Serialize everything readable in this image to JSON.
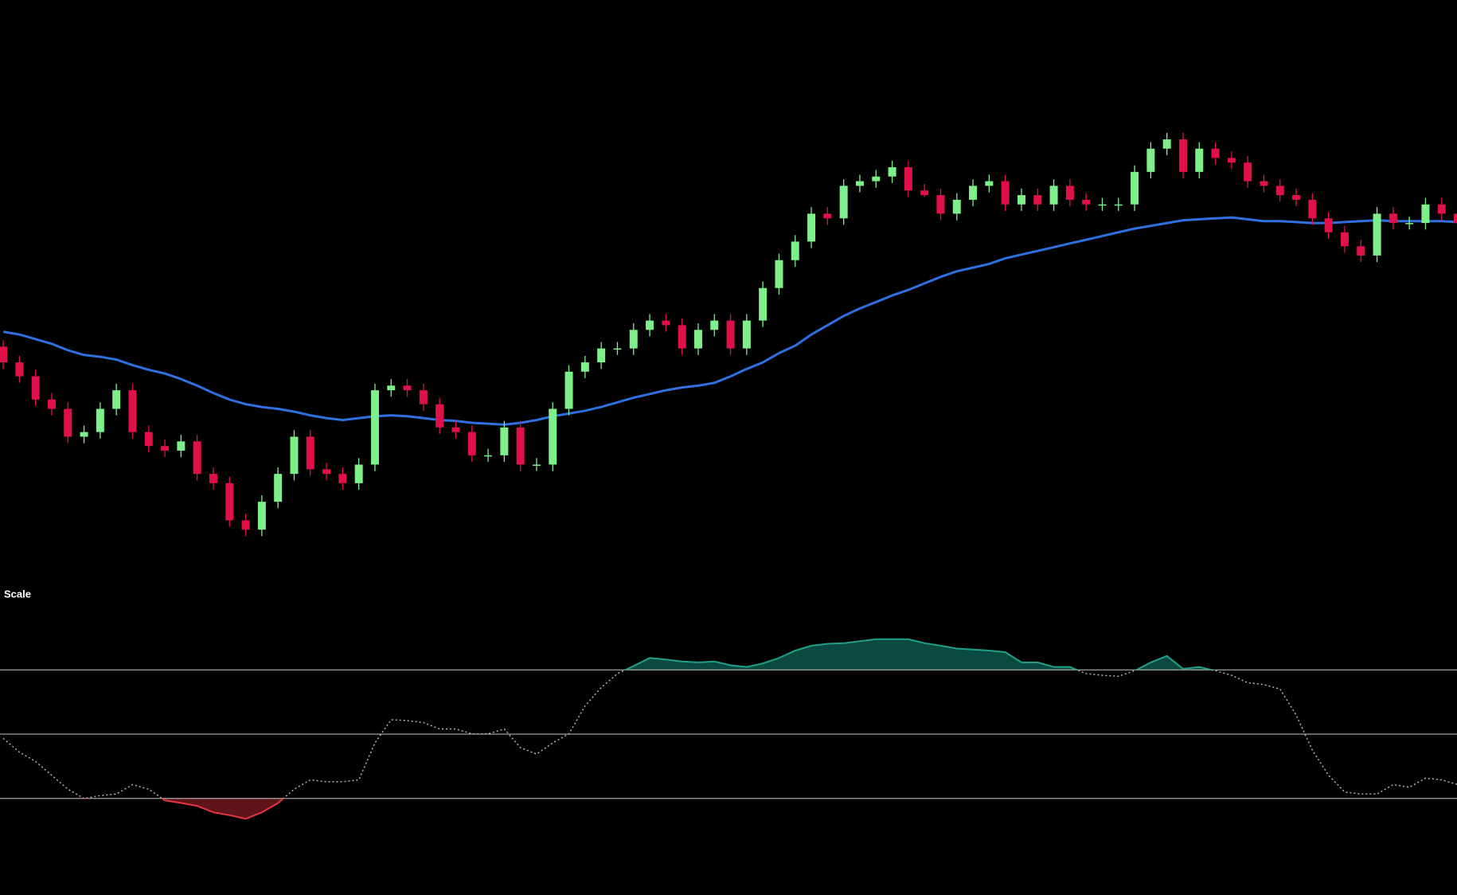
{
  "chart_data": [
    {
      "type": "candlestick",
      "up_color": "#7ef08a",
      "down_color": "#e0104a",
      "ylim": [
        340,
        963
      ],
      "open": [
        590,
        573,
        558,
        533,
        523,
        493,
        498,
        523,
        543,
        498,
        483,
        478,
        488,
        453,
        443,
        403,
        393,
        423,
        453,
        493,
        458,
        453,
        443,
        463,
        543,
        548,
        543,
        528,
        503,
        498,
        473,
        473,
        503,
        463,
        463,
        523,
        563,
        573,
        588,
        588,
        608,
        618,
        613,
        588,
        608,
        618,
        588,
        618,
        653,
        683,
        703,
        733,
        728,
        763,
        768,
        773,
        783,
        758,
        753,
        733,
        748,
        763,
        768,
        743,
        753,
        743,
        763,
        748,
        743,
        743,
        743,
        778,
        803,
        813,
        778,
        803,
        793,
        788,
        768,
        763,
        753,
        748,
        728,
        713,
        698,
        688,
        733,
        723,
        723,
        743,
        733
      ],
      "high": [
        597,
        580,
        565,
        540,
        530,
        505,
        530,
        550,
        550,
        505,
        490,
        495,
        495,
        460,
        450,
        410,
        430,
        460,
        500,
        500,
        465,
        460,
        470,
        550,
        555,
        555,
        550,
        535,
        510,
        505,
        480,
        510,
        510,
        470,
        530,
        570,
        580,
        595,
        595,
        615,
        625,
        625,
        620,
        615,
        625,
        625,
        625,
        660,
        690,
        710,
        740,
        740,
        770,
        775,
        780,
        790,
        790,
        765,
        760,
        755,
        770,
        775,
        775,
        760,
        760,
        770,
        770,
        755,
        750,
        750,
        785,
        810,
        820,
        820,
        810,
        810,
        800,
        795,
        775,
        770,
        760,
        755,
        735,
        720,
        705,
        740,
        740,
        730,
        750,
        750,
        740
      ],
      "low": [
        566,
        551,
        526,
        516,
        486,
        486,
        491,
        516,
        491,
        476,
        471,
        471,
        446,
        436,
        396,
        386,
        386,
        416,
        446,
        451,
        446,
        436,
        436,
        456,
        536,
        536,
        521,
        496,
        491,
        466,
        466,
        466,
        456,
        456,
        456,
        516,
        556,
        566,
        581,
        581,
        601,
        606,
        581,
        581,
        601,
        581,
        581,
        611,
        646,
        676,
        696,
        721,
        721,
        756,
        761,
        766,
        751,
        751,
        726,
        726,
        741,
        756,
        736,
        736,
        736,
        736,
        741,
        736,
        736,
        736,
        736,
        771,
        796,
        771,
        771,
        786,
        781,
        761,
        756,
        746,
        741,
        721,
        706,
        691,
        681,
        681,
        716,
        716,
        716,
        726,
        716
      ],
      "close": [
        573,
        558,
        533,
        523,
        493,
        498,
        523,
        543,
        498,
        483,
        478,
        488,
        453,
        443,
        403,
        393,
        423,
        453,
        493,
        458,
        453,
        443,
        463,
        543,
        548,
        543,
        528,
        503,
        498,
        473,
        473,
        503,
        463,
        463,
        523,
        563,
        573,
        588,
        588,
        608,
        618,
        613,
        588,
        608,
        618,
        588,
        618,
        653,
        683,
        703,
        733,
        728,
        763,
        768,
        773,
        783,
        758,
        753,
        733,
        748,
        763,
        768,
        743,
        753,
        743,
        763,
        748,
        743,
        743,
        743,
        778,
        803,
        813,
        778,
        803,
        793,
        788,
        768,
        763,
        753,
        748,
        728,
        713,
        698,
        688,
        733,
        723,
        723,
        743,
        733,
        723
      ],
      "series": [
        {
          "color": "#2f6fe0",
          "values": [
            606,
            603,
            598,
            593,
            586,
            581,
            579,
            576,
            570,
            565,
            561,
            555,
            548,
            540,
            533,
            528,
            525,
            523,
            520,
            516,
            513,
            511,
            513,
            515,
            516,
            515,
            513,
            511,
            510,
            508,
            507,
            506,
            508,
            511,
            515,
            518,
            521,
            525,
            530,
            535,
            539,
            543,
            546,
            548,
            551,
            558,
            566,
            573,
            583,
            591,
            603,
            613,
            623,
            631,
            638,
            645,
            651,
            658,
            665,
            671,
            675,
            679,
            685,
            689,
            693,
            697,
            701,
            705,
            709,
            713,
            717,
            720,
            723,
            726,
            727,
            728,
            729,
            727,
            725,
            725,
            724,
            723,
            723,
            724,
            725,
            726,
            725,
            725,
            725,
            725,
            724
          ]
        }
      ]
    },
    {
      "type": "line",
      "title": "Scale",
      "ylim": [
        0,
        100
      ],
      "levels": [
        70,
        50,
        30
      ],
      "level_color": "#c8c8c8",
      "color": "#b4b4b4",
      "upper_color": "#1fa088",
      "upper_fill": "#0b4a40",
      "lower_color": "#e8333f",
      "lower_fill": "#5e1419",
      "values": [
        48.7,
        44.4,
        41.5,
        37.2,
        32.9,
        30.0,
        30.9,
        31.4,
        34.3,
        32.9,
        29.4,
        28.6,
        27.7,
        25.7,
        24.8,
        23.7,
        25.7,
        28.6,
        32.9,
        35.8,
        35.2,
        35.2,
        35.8,
        47.3,
        54.5,
        54.2,
        53.6,
        51.6,
        51.6,
        50.1,
        50.1,
        51.6,
        45.8,
        43.8,
        47.3,
        50.1,
        58.8,
        64.5,
        68.8,
        71.2,
        73.7,
        73.2,
        72.6,
        72.3,
        72.6,
        71.4,
        70.9,
        72.0,
        73.7,
        76.0,
        77.5,
        78.1,
        78.3,
        78.9,
        79.5,
        79.5,
        79.5,
        78.3,
        77.5,
        76.6,
        76.3,
        76.0,
        75.5,
        72.3,
        72.3,
        70.9,
        70.9,
        68.8,
        68.3,
        68.0,
        69.7,
        72.3,
        74.3,
        70.3,
        70.9,
        69.7,
        68.3,
        66.0,
        65.4,
        64.0,
        55.9,
        45.0,
        37.2,
        32.0,
        31.4,
        31.4,
        34.3,
        33.5,
        36.3,
        35.8,
        34.3
      ]
    }
  ]
}
